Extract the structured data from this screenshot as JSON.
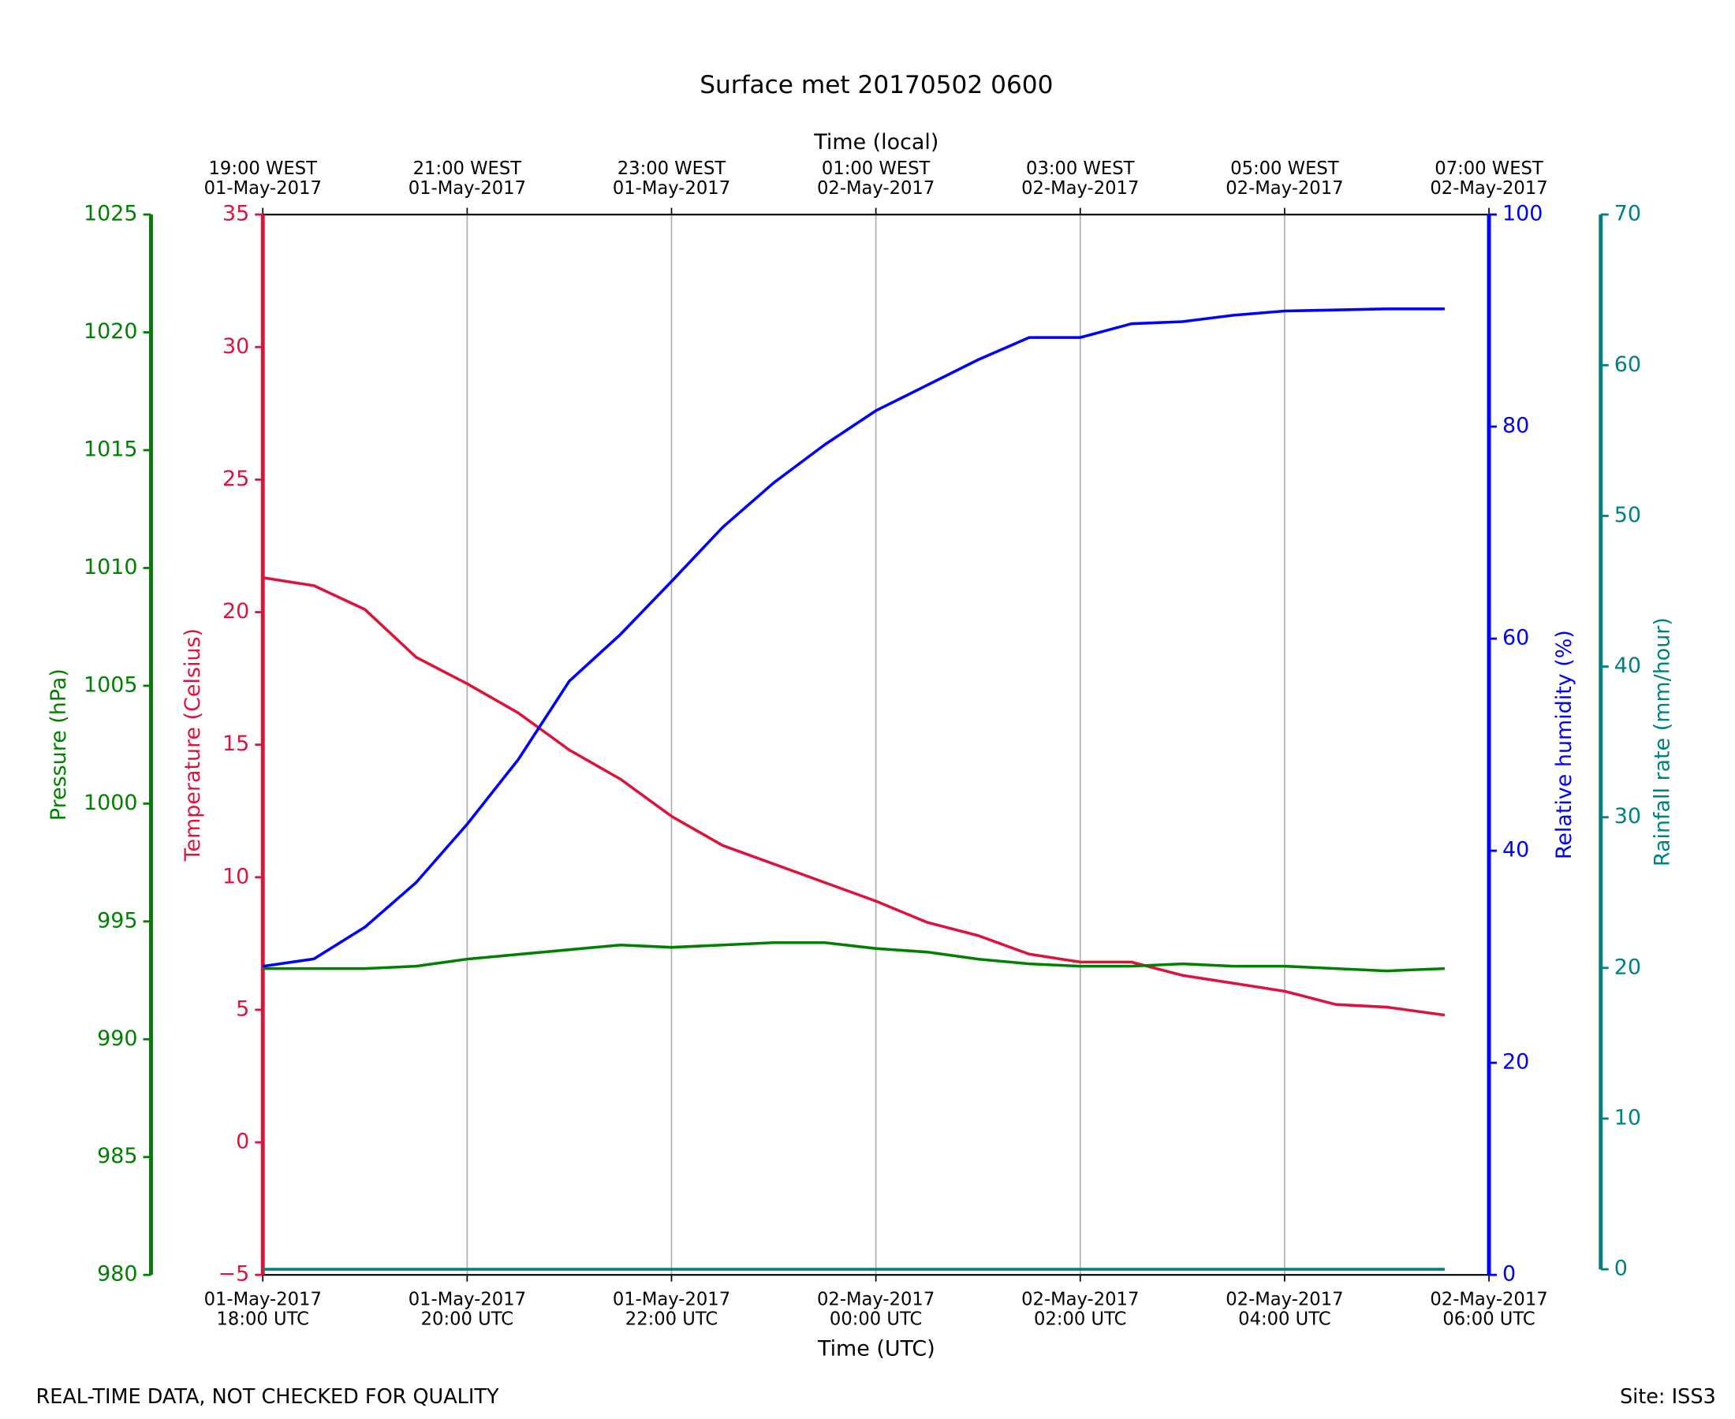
{
  "chart_data": {
    "type": "line",
    "title": "Surface met 20170502 0600",
    "xlabel": "Time (UTC)",
    "x2label": "Time (local)",
    "ylabel": "Temperature (Celsius)",
    "y2label": "Relative humidity (%)",
    "y3label": "Pressure (hPa)",
    "y4label": "Rainfall rate (mm/hour)",
    "footer_left": "REAL-TIME DATA, NOT CHECKED FOR QUALITY",
    "footer_right": "Site: ISS3",
    "grid": true,
    "xlim": [
      "2017-05-01T18:00",
      "2017-05-02T06:00"
    ],
    "xticks": [
      {
        "value": "2017-05-01T18:00",
        "label": "01-May-2017\n18:00 UTC"
      },
      {
        "value": "2017-05-01T20:00",
        "label": "01-May-2017\n20:00 UTC"
      },
      {
        "value": "2017-05-01T22:00",
        "label": "01-May-2017\n22:00 UTC"
      },
      {
        "value": "2017-05-02T00:00",
        "label": "02-May-2017\n00:00 UTC"
      },
      {
        "value": "2017-05-02T02:00",
        "label": "02-May-2017\n02:00 UTC"
      },
      {
        "value": "2017-05-02T04:00",
        "label": "02-May-2017\n04:00 UTC"
      },
      {
        "value": "2017-05-02T06:00",
        "label": "02-May-2017\n06:00 UTC"
      }
    ],
    "x2ticks": [
      {
        "value": "2017-05-01T18:00",
        "label": "19:00 WEST\n01-May-2017"
      },
      {
        "value": "2017-05-01T20:00",
        "label": "21:00 WEST\n01-May-2017"
      },
      {
        "value": "2017-05-01T22:00",
        "label": "23:00 WEST\n01-May-2017"
      },
      {
        "value": "2017-05-02T00:00",
        "label": "01:00 WEST\n02-May-2017"
      },
      {
        "value": "2017-05-02T02:00",
        "label": "03:00 WEST\n02-May-2017"
      },
      {
        "value": "2017-05-02T04:00",
        "label": "05:00 WEST\n02-May-2017"
      },
      {
        "value": "2017-05-02T06:00",
        "label": "07:00 WEST\n02-May-2017"
      }
    ],
    "ylim": [
      -5,
      35
    ],
    "yticks": [
      {
        "value": -5,
        "label": "−5"
      },
      0,
      5,
      10,
      15,
      20,
      25,
      30,
      35
    ],
    "y2lim": [
      0,
      100
    ],
    "y2ticks": [
      0,
      20,
      40,
      60,
      80,
      100
    ],
    "y3lim": [
      980,
      1025
    ],
    "y3ticks": [
      980,
      985,
      990,
      995,
      1000,
      1005,
      1010,
      1015,
      1020,
      1025
    ],
    "y4lim": [
      0,
      70
    ],
    "y4ticks": [
      0,
      10,
      20,
      30,
      40,
      50,
      60,
      70
    ],
    "x": [
      "2017-05-01T18:00",
      "2017-05-01T18:30",
      "2017-05-01T19:00",
      "2017-05-01T19:30",
      "2017-05-01T20:00",
      "2017-05-01T20:30",
      "2017-05-01T21:00",
      "2017-05-01T21:30",
      "2017-05-01T22:00",
      "2017-05-01T22:30",
      "2017-05-01T23:00",
      "2017-05-01T23:30",
      "2017-05-02T00:00",
      "2017-05-02T00:30",
      "2017-05-02T01:00",
      "2017-05-02T01:30",
      "2017-05-02T02:00",
      "2017-05-02T02:30",
      "2017-05-02T03:00",
      "2017-05-02T03:30",
      "2017-05-02T04:00",
      "2017-05-02T04:30",
      "2017-05-02T05:00",
      "2017-05-02T05:34"
    ],
    "series": [
      {
        "name": "Temperature",
        "color": "#dc143c",
        "axis": "y",
        "values": [
          21.3,
          21.0,
          20.1,
          18.3,
          17.3,
          16.2,
          14.8,
          13.7,
          12.3,
          11.2,
          10.5,
          9.8,
          9.1,
          8.3,
          7.8,
          7.1,
          6.8,
          6.8,
          6.3,
          6.0,
          5.7,
          5.2,
          5.1,
          4.8
        ]
      },
      {
        "name": "Relative humidity",
        "color": "#0000ff",
        "axis": "y2",
        "values": [
          29.1,
          29.8,
          32.8,
          37,
          42.5,
          48.6,
          56,
          60.4,
          65.4,
          70.5,
          74.7,
          78.3,
          81.5,
          83.9,
          86.3,
          88.4,
          88.4,
          89.7,
          89.9,
          90.5,
          90.9,
          91.0,
          91.1,
          91.1
        ]
      },
      {
        "name": "Pressure",
        "color": "#008000",
        "axis": "y3",
        "values": [
          993.0,
          993.0,
          993.0,
          993.1,
          993.4,
          993.6,
          993.8,
          994.0,
          993.9,
          994.0,
          994.1,
          994.1,
          993.85,
          993.7,
          993.4,
          993.2,
          993.1,
          993.1,
          993.2,
          993.1,
          993.1,
          993.0,
          992.9,
          993.0
        ]
      },
      {
        "name": "Rainfall rate",
        "color": "#008080",
        "axis": "y4",
        "values": [
          0,
          0,
          0,
          0,
          0,
          0,
          0,
          0,
          0,
          0,
          0,
          0,
          0,
          0,
          0,
          0,
          0,
          0,
          0,
          0,
          0,
          0,
          0,
          0
        ]
      }
    ]
  }
}
